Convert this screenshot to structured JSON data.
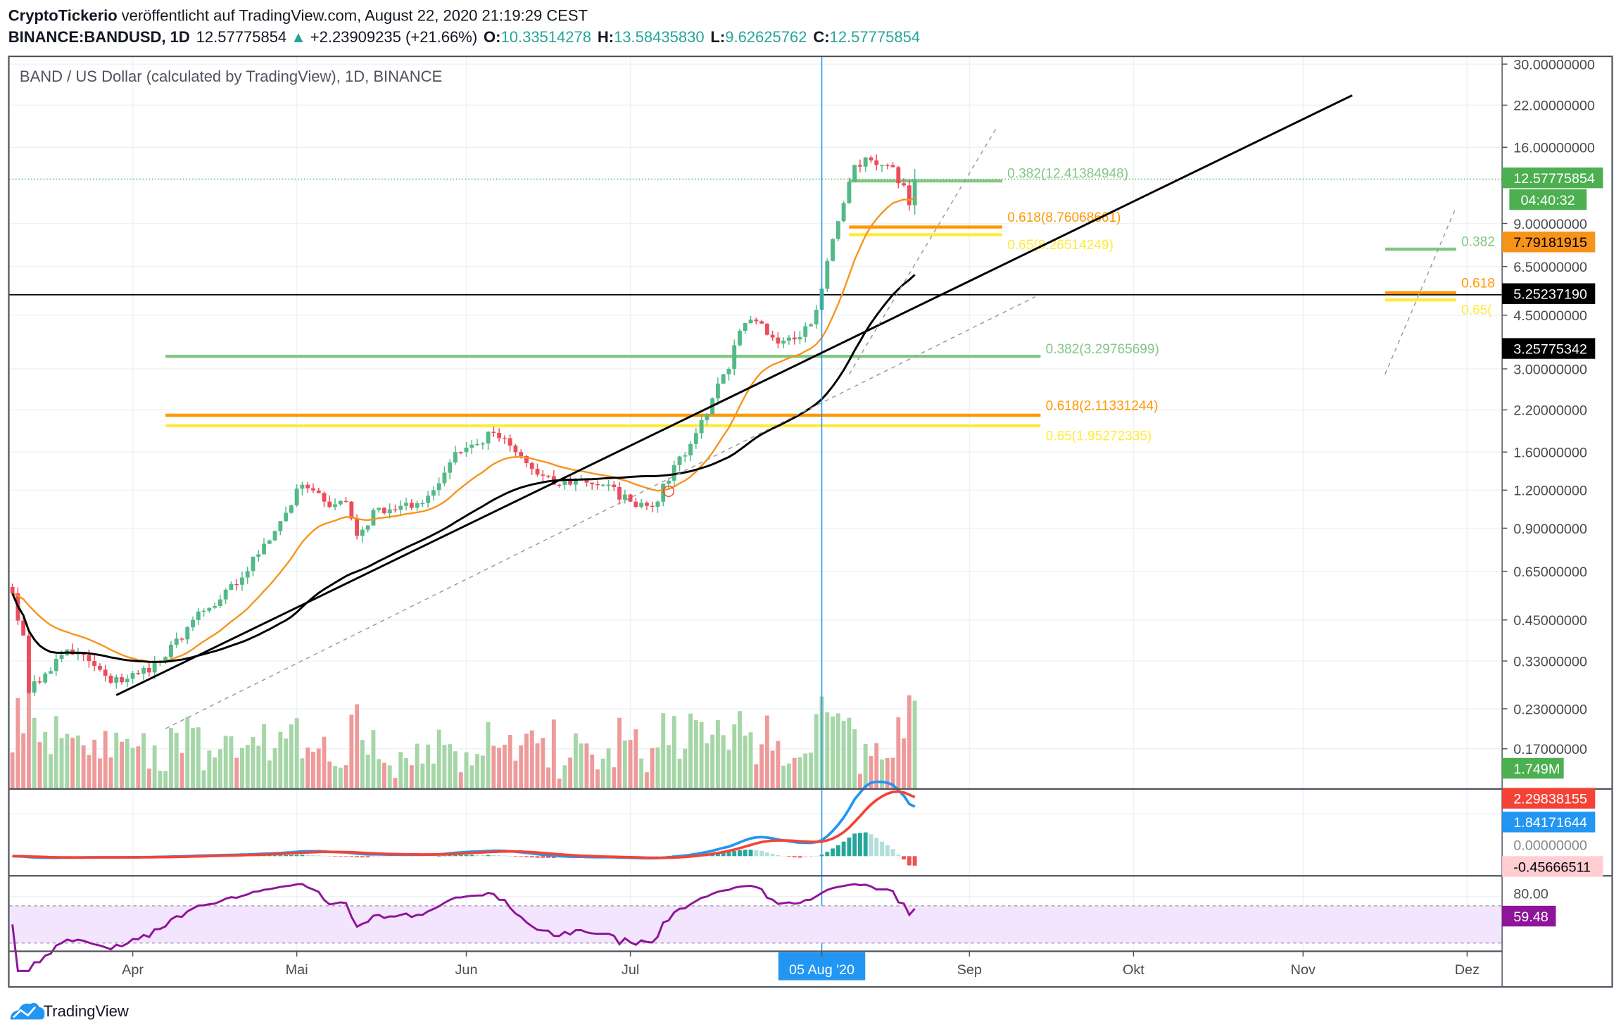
{
  "header": {
    "author": "CryptoTickerio",
    "published": "veröffentlicht auf TradingView.com, August 22, 2020 21:19:29 CEST",
    "symbol": "BINANCE:BANDUSD, 1D",
    "last": "12.57775854",
    "change": "+2.23909235 (+21.66%)",
    "o_label": "O:",
    "o": "10.33514278",
    "h_label": "H:",
    "h": "13.58435830",
    "l_label": "L:",
    "l": "9.62625762",
    "c_label": "C:",
    "c": "12.57775854",
    "chart_title": "BAND / US Dollar (calculated by TradingView), 1D, BINANCE"
  },
  "brand": "TradingView",
  "colors": {
    "up": "#53b987",
    "down": "#eb4d5c",
    "vol_up": "#a5d6a7",
    "vol_down": "#ef9a9a",
    "ema": "#f7931a",
    "sma": "#000000",
    "macd": "#2196f3",
    "signal": "#f44336",
    "rsi": "#8e1599",
    "fib382": "#81c784",
    "fib618": "#ff9800",
    "fib65": "#ffeb3b",
    "vline": "#2196f3"
  },
  "chart_data": {
    "type": "candlestick",
    "yscale": "log",
    "ylim": [
      0.16,
      32
    ],
    "y_ticks": [
      "30.00000000",
      "22.00000000",
      "16.00000000",
      "9.00000000",
      "6.50000000",
      "4.50000000",
      "3.00000000",
      "2.20000000",
      "1.60000000",
      "1.20000000",
      "0.90000000",
      "0.65000000",
      "0.45000000",
      "0.33000000",
      "0.23000000",
      "0.17000000"
    ],
    "x_ticks": [
      {
        "label": "Apr",
        "date": "2020-04-01"
      },
      {
        "label": "Mai",
        "date": "2020-05-01"
      },
      {
        "label": "Jun",
        "date": "2020-06-01"
      },
      {
        "label": "Jul",
        "date": "2020-07-01"
      },
      {
        "label": "05 Aug '20",
        "date": "2020-08-05",
        "highlight": true
      },
      {
        "label": "Sep",
        "date": "2020-09-01"
      },
      {
        "label": "Okt",
        "date": "2020-10-01"
      },
      {
        "label": "Nov",
        "date": "2020-11-01"
      },
      {
        "label": "Dez",
        "date": "2020-12-01"
      }
    ],
    "x_start": "2020-03-10",
    "close_anchors": [
      [
        "2020-03-10",
        0.55
      ],
      [
        "2020-03-12",
        0.4
      ],
      [
        "2020-03-13",
        0.26
      ],
      [
        "2020-03-16",
        0.3
      ],
      [
        "2020-03-20",
        0.36
      ],
      [
        "2020-03-24",
        0.33
      ],
      [
        "2020-03-28",
        0.28
      ],
      [
        "2020-04-02",
        0.3
      ],
      [
        "2020-04-07",
        0.34
      ],
      [
        "2020-04-12",
        0.45
      ],
      [
        "2020-04-16",
        0.5
      ],
      [
        "2020-04-21",
        0.62
      ],
      [
        "2020-04-25",
        0.8
      ],
      [
        "2020-04-28",
        0.95
      ],
      [
        "2020-05-02",
        1.25
      ],
      [
        "2020-05-06",
        1.1
      ],
      [
        "2020-05-10",
        1.1
      ],
      [
        "2020-05-12",
        0.85
      ],
      [
        "2020-05-16",
        1.05
      ],
      [
        "2020-05-22",
        1.05
      ],
      [
        "2020-05-26",
        1.2
      ],
      [
        "2020-05-30",
        1.6
      ],
      [
        "2020-06-03",
        1.7
      ],
      [
        "2020-06-06",
        1.85
      ],
      [
        "2020-06-10",
        1.6
      ],
      [
        "2020-06-14",
        1.35
      ],
      [
        "2020-06-17",
        1.25
      ],
      [
        "2020-06-22",
        1.3
      ],
      [
        "2020-06-26",
        1.25
      ],
      [
        "2020-07-01",
        1.1
      ],
      [
        "2020-07-06",
        1.1
      ],
      [
        "2020-07-09",
        1.45
      ],
      [
        "2020-07-12",
        1.7
      ],
      [
        "2020-07-16",
        2.4
      ],
      [
        "2020-07-19",
        3.0
      ],
      [
        "2020-07-21",
        4.0
      ],
      [
        "2020-07-24",
        4.3
      ],
      [
        "2020-07-27",
        3.8
      ],
      [
        "2020-07-30",
        3.8
      ],
      [
        "2020-08-03",
        4.2
      ],
      [
        "2020-08-05",
        5.5
      ],
      [
        "2020-08-07",
        8.0
      ],
      [
        "2020-08-09",
        10.5
      ],
      [
        "2020-08-11",
        14.0
      ],
      [
        "2020-08-14",
        14.5
      ],
      [
        "2020-08-17",
        14.0
      ],
      [
        "2020-08-20",
        12.0
      ],
      [
        "2020-08-21",
        10.33514278
      ]
    ],
    "last_candle": {
      "date": "2020-08-22",
      "open": 10.33514278,
      "high": 13.5843583,
      "low": 9.62625762,
      "close": 12.57775854
    },
    "trendlines": [
      {
        "style": "solid",
        "from": [
          "2020-03-29",
          0.255
        ],
        "to": [
          "2020-11-10",
          23.7
        ]
      },
      {
        "style": "dashed",
        "from": [
          "2020-04-07",
          0.198
        ],
        "to": [
          "2020-09-13",
          5.17
        ]
      },
      {
        "style": "dashed",
        "from": [
          "2020-08-10",
          2.88
        ],
        "to": [
          "2020-09-06",
          18.6
        ]
      },
      {
        "style": "dashed",
        "from": [
          "2020-11-16",
          2.88
        ],
        "to": [
          "2020-11-29",
          10.2
        ]
      }
    ],
    "fib_sets": [
      {
        "from": "2020-04-07",
        "to": "2020-09-14",
        "levels": [
          {
            "k": "fib382",
            "price": 3.29765699,
            "label": "0.382(3.29765699)"
          },
          {
            "k": "fib618",
            "price": 2.11331244,
            "label": "0.618(2.11331244)"
          },
          {
            "k": "fib65",
            "price": 1.95272335,
            "label": "0.65(1.95272335)"
          }
        ]
      },
      {
        "from": "2020-08-10",
        "to": "2020-09-07",
        "levels": [
          {
            "k": "fib382",
            "price": 12.41384948,
            "label": "0.382(12.41384948)"
          },
          {
            "k": "fib618",
            "price": 8.76068661,
            "label": "0.618(8.76068661)"
          },
          {
            "k": "fib65",
            "price": 8.26514249,
            "label": "0.65(8.26514249)"
          }
        ]
      },
      {
        "from": "2020-11-16",
        "to": "2020-11-29",
        "levels": [
          {
            "k": "fib382",
            "price": 7.41,
            "label": "0.382"
          },
          {
            "k": "fib618",
            "price": 5.33,
            "label": "0.618"
          },
          {
            "k": "fib65",
            "price": 5.05,
            "label": "0.65("
          }
        ]
      }
    ],
    "horizontal_line": 5.2523719,
    "vertical_line": "2020-08-05",
    "marker_circle": [
      "2020-07-08",
      1.19
    ],
    "ema_period": 20,
    "sma_period": 50,
    "price_labels": {
      "last": "12.57775854",
      "countdown": "04:40:32",
      "ema": "7.79181915",
      "hline": "5.25237190",
      "sma": "3.25775342",
      "volume": "1.749M",
      "macd_signal": "2.29838155",
      "macd": "1.84171644",
      "macd_zero": "0.00000000",
      "macd_hist": "-0.45666511",
      "rsi_80": "80.00",
      "rsi": "59.48"
    }
  }
}
